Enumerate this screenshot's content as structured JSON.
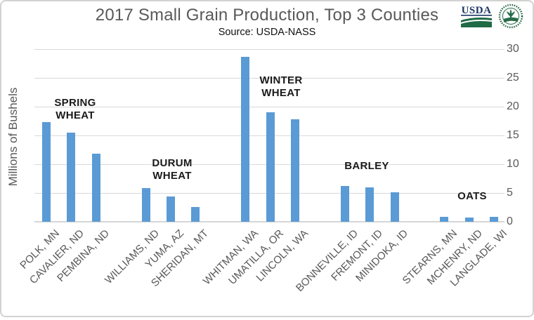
{
  "chart_data": {
    "type": "bar",
    "title": "2017 Small Grain Production, Top 3 Counties",
    "subtitle": "Source: USDA-NASS",
    "ylabel": "Millions of Bushels",
    "xlabel": "",
    "ylim": [
      0,
      30
    ],
    "yticks": [
      0,
      5,
      10,
      15,
      20,
      25,
      30
    ],
    "y_axis_side": "right",
    "grid": true,
    "legend": false,
    "bar_color": "#5B9BD5",
    "categories": [
      "POLK, MN",
      "CAVALIER, ND",
      "PEMBINA, ND",
      "WILLIAMS, ND",
      "YUMA, AZ",
      "SHERIDAN, MT",
      "WHITMAN, WA",
      "UMATILLA, OR",
      "LINCOLN, WA",
      "BONNEVILLE, ID",
      "FREMONT, ID",
      "MINIDOKA, ID",
      "STEARNS, MN",
      "MCHENRY, ND",
      "LANGLADE, WI"
    ],
    "values": [
      17.3,
      15.5,
      11.8,
      5.9,
      4.4,
      2.6,
      28.7,
      19.0,
      17.8,
      6.2,
      6.0,
      5.1,
      0.9,
      0.7,
      0.8
    ],
    "group_labels": [
      {
        "label": "SPRING WHEAT",
        "lines": [
          "SPRING",
          "WHEAT"
        ],
        "bars": [
          0,
          1,
          2
        ]
      },
      {
        "label": "DURUM WHEAT",
        "lines": [
          "DURUM",
          "WHEAT"
        ],
        "bars": [
          3,
          4,
          5
        ]
      },
      {
        "label": "WINTER WHEAT",
        "lines": [
          "WINTER",
          "WHEAT"
        ],
        "bars": [
          6,
          7,
          8
        ]
      },
      {
        "label": "BARLEY",
        "lines": [
          "BARLEY"
        ],
        "bars": [
          9,
          10,
          11
        ]
      },
      {
        "label": "OATS",
        "lines": [
          "OATS"
        ],
        "bars": [
          12,
          13,
          14
        ]
      }
    ]
  },
  "logos": {
    "usda_wordmark": "USDA"
  },
  "colors": {
    "bar_blue": "#5B9BD5",
    "gridline": "#D9D9D9",
    "axis_text": "#595959",
    "title_text": "#595959",
    "group_label_text": "#1A1A1A",
    "usda_navy": "#1C3664",
    "usda_green": "#1E6B45"
  }
}
